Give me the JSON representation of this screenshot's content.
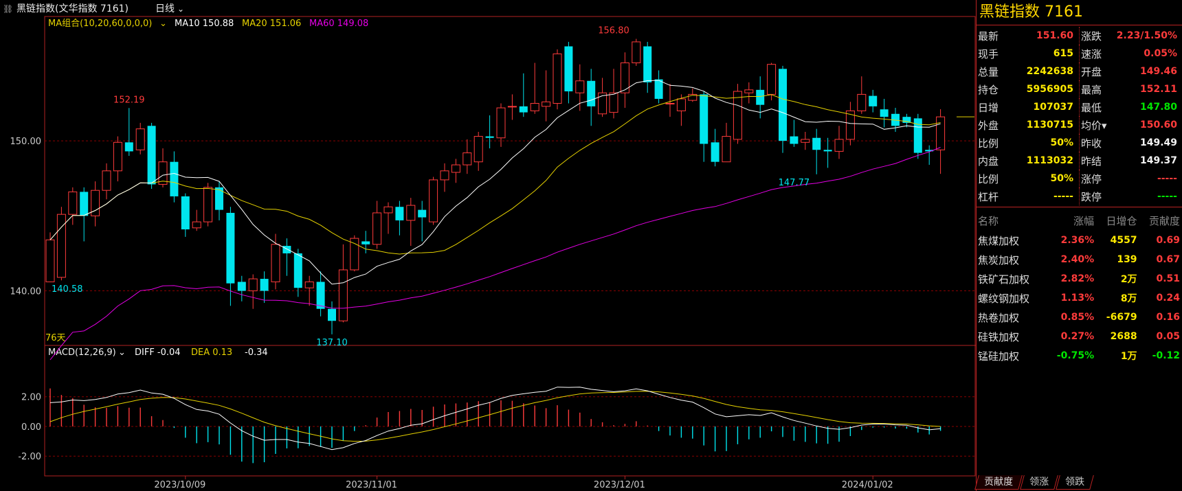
{
  "header": {
    "title": "黑链指数(文华指数 7161)",
    "period": "日线"
  },
  "ma_legend": {
    "label": "MA组合(10,20,60,0,0,0)",
    "ma10": "MA10 150.88",
    "ma20": "MA20 151.06",
    "ma60": "MA60 149.08"
  },
  "macd_legend": {
    "label": "MACD(12,26,9)",
    "diff": "DIFF -0.04",
    "dea": "DEA 0.13",
    "macd": "-0.34"
  },
  "chart_data": {
    "type": "candlestick",
    "ylim": [
      136.5,
      158.2
    ],
    "yticks": [
      "150.00",
      "140.00"
    ],
    "macd_ylim": [
      -3.1,
      4.3
    ],
    "macd_yticks": [
      "2.00",
      "0.00",
      "-2.00"
    ],
    "xticks": [
      {
        "label": "2023/10/09",
        "index": 12
      },
      {
        "label": "2023/11/01",
        "index": 29
      },
      {
        "label": "2023/12/01",
        "index": 51
      },
      {
        "label": "2024/01/02",
        "index": 73
      }
    ],
    "days_label": "76天",
    "annotations": [
      {
        "text": "152.19",
        "index": 7,
        "value": 152.19,
        "pos": "above"
      },
      {
        "text": "140.58",
        "index": 0,
        "value": 140.58,
        "pos": "right"
      },
      {
        "text": "137.10",
        "index": 25,
        "value": 137.1,
        "pos": "below"
      },
      {
        "text": "156.80",
        "index": 50,
        "value": 156.8,
        "pos": "above"
      },
      {
        "text": "147.77",
        "index": 66,
        "value": 147.77,
        "pos": "below"
      }
    ],
    "candles": [
      [
        140.6,
        143.4,
        143.9,
        140.58
      ],
      [
        140.9,
        145.1,
        145.6,
        140.7
      ],
      [
        145.1,
        146.6,
        146.9,
        144.4
      ],
      [
        146.6,
        145.0,
        146.9,
        143.3
      ],
      [
        145.0,
        146.7,
        147.3,
        144.3
      ],
      [
        146.7,
        148.0,
        148.5,
        146.1
      ],
      [
        148.0,
        149.9,
        150.3,
        147.3
      ],
      [
        149.9,
        149.3,
        152.19,
        149.0
      ],
      [
        149.4,
        150.8,
        151.2,
        149.1
      ],
      [
        151.0,
        147.1,
        151.2,
        146.8
      ],
      [
        147.1,
        148.6,
        149.5,
        146.9
      ],
      [
        148.6,
        146.3,
        149.3,
        145.9
      ],
      [
        146.3,
        144.1,
        146.5,
        143.6
      ],
      [
        144.2,
        144.6,
        145.4,
        144.0
      ],
      [
        144.6,
        146.9,
        147.2,
        144.3
      ],
      [
        146.9,
        145.4,
        147.3,
        144.7
      ],
      [
        145.2,
        140.5,
        145.6,
        139.0
      ],
      [
        140.6,
        140.0,
        141.0,
        139.3
      ],
      [
        140.0,
        140.8,
        141.1,
        138.8
      ],
      [
        140.8,
        140.0,
        141.3,
        139.2
      ],
      [
        140.6,
        143.1,
        143.8,
        140.1
      ],
      [
        143.0,
        142.5,
        143.5,
        141.0
      ],
      [
        142.5,
        140.2,
        142.8,
        139.6
      ],
      [
        140.2,
        140.6,
        141.0,
        139.0
      ],
      [
        140.6,
        138.8,
        141.3,
        138.3
      ],
      [
        138.8,
        138.0,
        139.3,
        137.1
      ],
      [
        138.0,
        141.4,
        143.1,
        137.9
      ],
      [
        141.4,
        143.5,
        143.7,
        141.3
      ],
      [
        143.3,
        143.1,
        144.0,
        142.5
      ],
      [
        143.1,
        145.2,
        146.0,
        142.8
      ],
      [
        145.2,
        145.6,
        145.9,
        143.8
      ],
      [
        145.6,
        144.7,
        146.0,
        143.7
      ],
      [
        144.7,
        145.7,
        146.2,
        143.0
      ],
      [
        145.4,
        144.9,
        146.0,
        143.3
      ],
      [
        144.6,
        147.4,
        147.6,
        144.4
      ],
      [
        147.4,
        148.0,
        148.5,
        146.6
      ],
      [
        147.9,
        148.4,
        148.8,
        147.2
      ],
      [
        148.4,
        149.2,
        150.1,
        147.8
      ],
      [
        148.6,
        150.3,
        150.6,
        148.0
      ],
      [
        150.3,
        150.2,
        151.7,
        149.5
      ],
      [
        150.2,
        152.2,
        152.5,
        149.6
      ],
      [
        152.3,
        152.3,
        153.1,
        151.4
      ],
      [
        152.3,
        151.9,
        154.5,
        151.6
      ],
      [
        152.0,
        152.5,
        155.2,
        151.8
      ],
      [
        152.3,
        152.6,
        154.7,
        151.3
      ],
      [
        152.5,
        155.8,
        156.1,
        152.1
      ],
      [
        156.3,
        153.3,
        156.6,
        152.5
      ],
      [
        153.2,
        154.0,
        155.1,
        152.0
      ],
      [
        154.0,
        152.3,
        154.8,
        151.0
      ],
      [
        151.8,
        153.2,
        154.2,
        151.6
      ],
      [
        151.9,
        153.2,
        154.8,
        151.5
      ],
      [
        153.2,
        155.2,
        155.9,
        152.2
      ],
      [
        155.2,
        156.6,
        156.8,
        155.0
      ],
      [
        156.3,
        153.9,
        156.6,
        153.2
      ],
      [
        154.1,
        152.8,
        154.7,
        152.5
      ],
      [
        152.5,
        152.5,
        153.8,
        151.6
      ],
      [
        152.0,
        152.8,
        153.1,
        151.0
      ],
      [
        152.7,
        153.1,
        153.5,
        152.6
      ],
      [
        153.1,
        149.8,
        153.3,
        148.6
      ],
      [
        149.9,
        148.6,
        150.8,
        148.3
      ],
      [
        148.6,
        150.3,
        151.2,
        148.8
      ],
      [
        150.1,
        153.3,
        153.8,
        149.8
      ],
      [
        153.2,
        153.4,
        153.9,
        152.5
      ],
      [
        153.4,
        152.4,
        154.3,
        151.5
      ],
      [
        153.1,
        155.1,
        155.2,
        152.7
      ],
      [
        154.8,
        150.0,
        155.0,
        149.2
      ],
      [
        150.3,
        149.8,
        151.4,
        149.6
      ],
      [
        149.9,
        150.1,
        150.6,
        149.4
      ],
      [
        150.2,
        149.4,
        150.8,
        147.77
      ],
      [
        149.4,
        149.3,
        150.2,
        148.2
      ],
      [
        149.3,
        150.1,
        151.0,
        148.8
      ],
      [
        150.1,
        152.0,
        152.6,
        149.7
      ],
      [
        152.0,
        153.1,
        154.3,
        151.8
      ],
      [
        153.0,
        152.3,
        153.4,
        151.9
      ],
      [
        152.1,
        151.6,
        152.8,
        150.9
      ],
      [
        151.8,
        151.0,
        152.2,
        150.6
      ],
      [
        151.6,
        151.2,
        151.8,
        150.9
      ],
      [
        151.5,
        149.2,
        151.8,
        148.8
      ],
      [
        149.4,
        149.3,
        149.7,
        148.4
      ],
      [
        149.4,
        151.6,
        152.11,
        147.8
      ]
    ],
    "ma10": [],
    "ma20": [],
    "ma60": [],
    "macd_diff": [],
    "macd_dea": [],
    "macd_hist": []
  },
  "panel": {
    "title": "黑链指数  7161",
    "quotes": [
      {
        "k": "最新",
        "v": "151.60",
        "c": "red",
        "k2": "涨跌",
        "v2": "2.23/1.50%",
        "c2": "red"
      },
      {
        "k": "现手",
        "v": "615",
        "c": "yel",
        "k2": "速涨",
        "v2": "0.05%",
        "c2": "red"
      },
      {
        "k": "总量",
        "v": "2242638",
        "c": "yel",
        "k2": "开盘",
        "v2": "149.46",
        "c2": "red"
      },
      {
        "k": "持仓",
        "v": "5956905",
        "c": "yel",
        "k2": "最高",
        "v2": "152.11",
        "c2": "red"
      },
      {
        "k": "日增",
        "v": "107037",
        "c": "yel",
        "k2": "最低",
        "v2": "147.80",
        "c2": "grn"
      },
      {
        "k": "外盘",
        "v": "1130715",
        "c": "yel",
        "k2": "均价▾",
        "v2": "150.60",
        "c2": "red"
      },
      {
        "k": "比例",
        "v": "50%",
        "c": "yel",
        "k2": "昨收",
        "v2": "149.49",
        "c2": "wht"
      },
      {
        "k": "内盘",
        "v": "1113032",
        "c": "yel",
        "k2": "昨结",
        "v2": "149.37",
        "c2": "wht"
      },
      {
        "k": "比例",
        "v": "50%",
        "c": "yel",
        "k2": "涨停",
        "v2": "-----",
        "c2": "red"
      },
      {
        "k": "杠杆",
        "v": "-----",
        "c": "yel",
        "k2": "跌停",
        "v2": "-----",
        "c2": "grn"
      }
    ],
    "table_headers": [
      "名称",
      "涨幅",
      "日增仓",
      "贡献度"
    ],
    "components": [
      {
        "name": "焦煤加权",
        "chg": "2.36%",
        "oi": "4557",
        "contrib": "0.69",
        "c": "red"
      },
      {
        "name": "焦炭加权",
        "chg": "2.40%",
        "oi": "139",
        "contrib": "0.67",
        "c": "red"
      },
      {
        "name": "铁矿石加权",
        "chg": "2.82%",
        "oi": "2万",
        "contrib": "0.51",
        "c": "red"
      },
      {
        "name": "螺纹钢加权",
        "chg": "1.13%",
        "oi": "8万",
        "contrib": "0.24",
        "c": "red"
      },
      {
        "name": "热卷加权",
        "chg": "0.85%",
        "oi": "-6679",
        "contrib": "0.16",
        "c": "red"
      },
      {
        "name": "硅铁加权",
        "chg": "0.27%",
        "oi": "2688",
        "contrib": "0.05",
        "c": "red"
      },
      {
        "name": "锰硅加权",
        "chg": "-0.75%",
        "oi": "1万",
        "contrib": "-0.12",
        "c": "grn"
      }
    ],
    "tabs": [
      "贡献度",
      "领涨",
      "领跌"
    ]
  },
  "colors": {
    "up": "#ff3b3b",
    "down": "#00e5ee",
    "ma10": "#ffffff",
    "ma20": "#e6d200",
    "ma60": "#e600e6",
    "grid": "#8b0000",
    "axis": "#b22222"
  }
}
